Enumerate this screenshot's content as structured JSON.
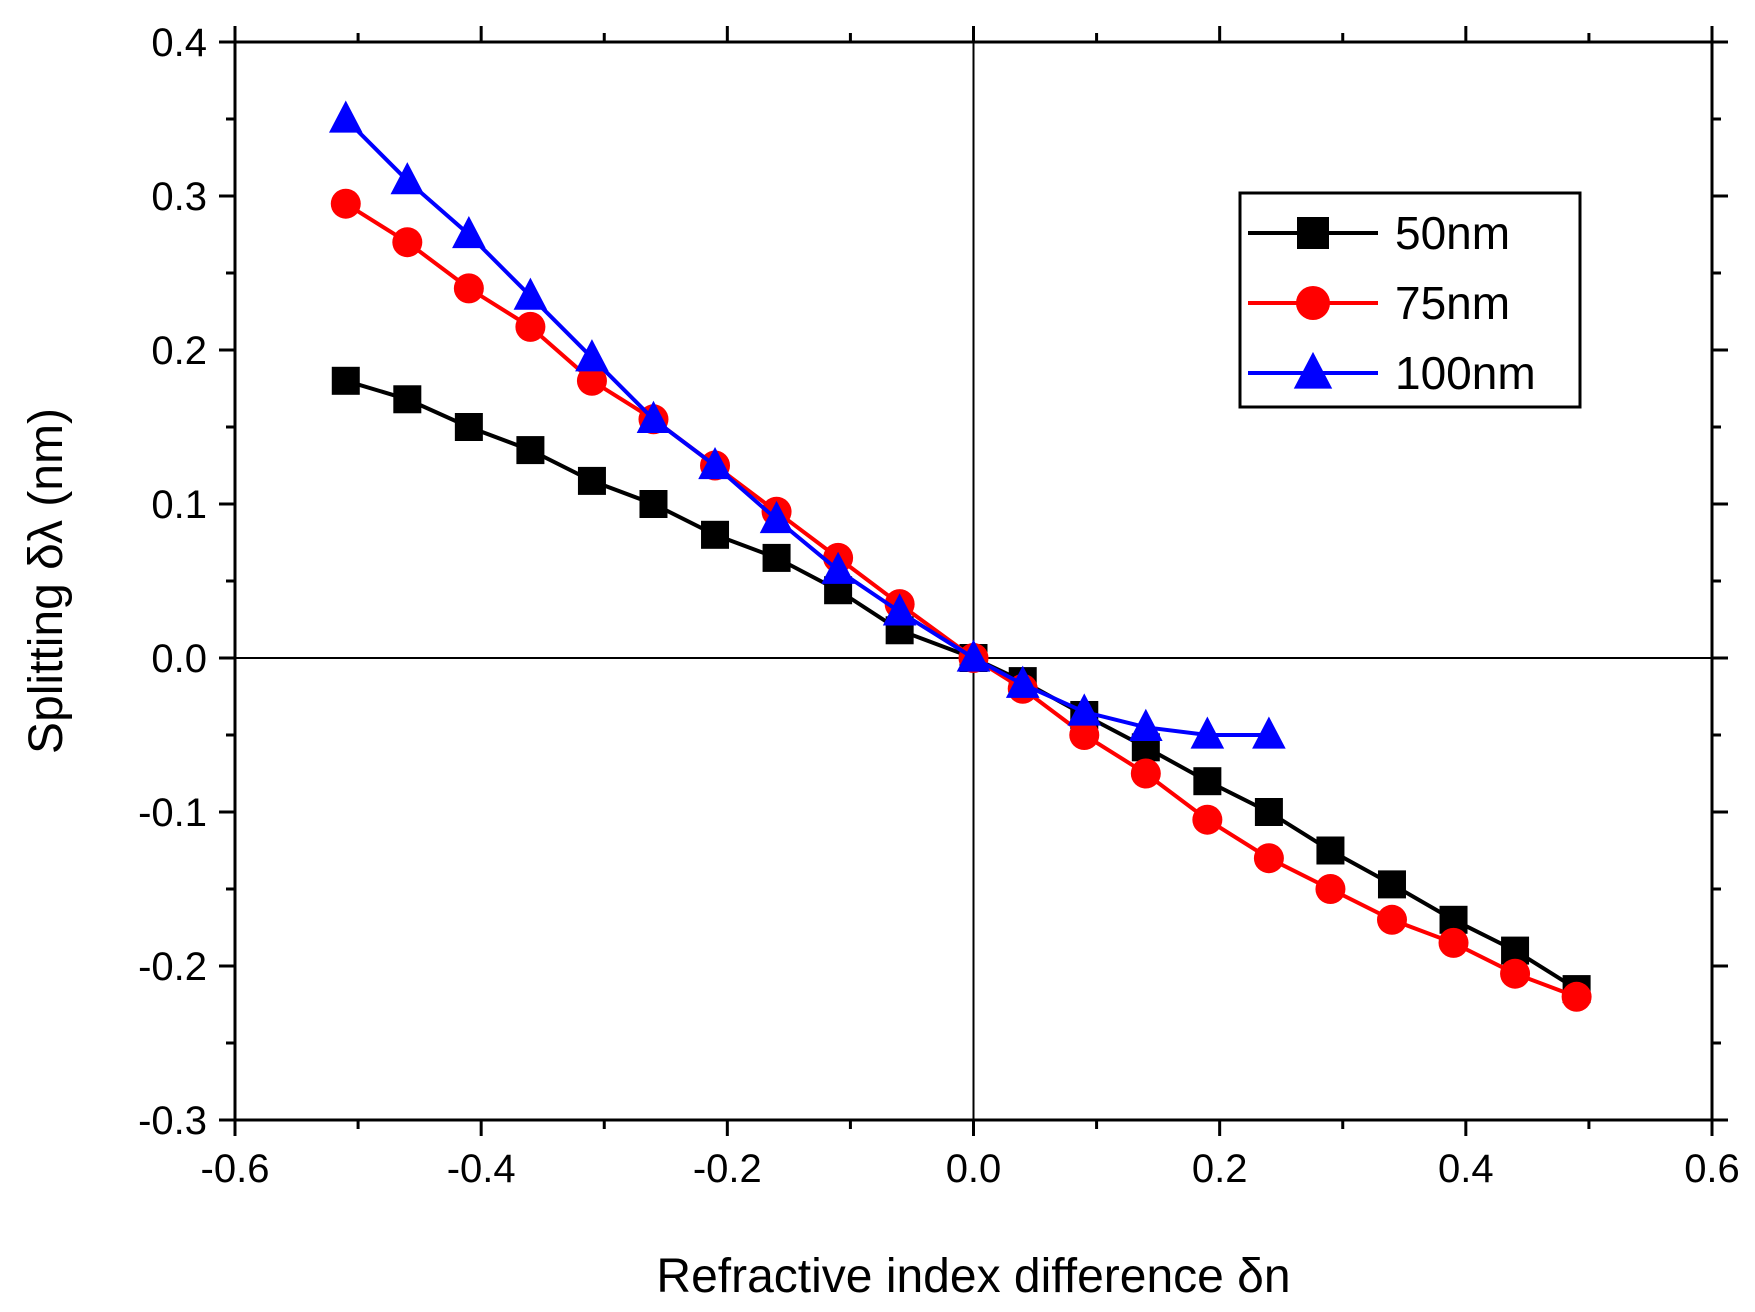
{
  "chart_data": {
    "type": "line",
    "title": "",
    "xlabel": "Refractive index difference δn",
    "ylabel": "Splitting δλ (nm)",
    "xlim": [
      -0.6,
      0.6
    ],
    "ylim": [
      -0.3,
      0.4
    ],
    "x_ticks": [
      "-0.6",
      "-0.4",
      "-0.2",
      "0.0",
      "0.2",
      "0.4",
      "0.6"
    ],
    "y_ticks": [
      "-0.3",
      "-0.2",
      "-0.1",
      "0.0",
      "0.1",
      "0.2",
      "0.3",
      "0.4"
    ],
    "grid": false,
    "reference_lines": {
      "x": 0,
      "y": 0
    },
    "legend_position": "top-right",
    "series": [
      {
        "name": "50nm",
        "color": "#000000",
        "marker": "square",
        "x": [
          -0.51,
          -0.46,
          -0.41,
          -0.36,
          -0.31,
          -0.26,
          -0.21,
          -0.16,
          -0.11,
          -0.06,
          0.0,
          0.04,
          0.09,
          0.14,
          0.19,
          0.24,
          0.29,
          0.34,
          0.39,
          0.44,
          0.49
        ],
        "y": [
          0.18,
          0.168,
          0.15,
          0.135,
          0.115,
          0.1,
          0.08,
          0.065,
          0.044,
          0.018,
          0.0,
          -0.015,
          -0.037,
          -0.058,
          -0.08,
          -0.1,
          -0.125,
          -0.147,
          -0.17,
          -0.19,
          -0.215
        ]
      },
      {
        "name": "75nm",
        "color": "#ff0000",
        "marker": "circle",
        "x": [
          -0.51,
          -0.46,
          -0.41,
          -0.36,
          -0.31,
          -0.26,
          -0.21,
          -0.16,
          -0.11,
          -0.06,
          0.0,
          0.04,
          0.09,
          0.14,
          0.19,
          0.24,
          0.29,
          0.34,
          0.39,
          0.44,
          0.49
        ],
        "y": [
          0.295,
          0.27,
          0.24,
          0.215,
          0.18,
          0.155,
          0.125,
          0.095,
          0.065,
          0.035,
          0.0,
          -0.02,
          -0.05,
          -0.075,
          -0.105,
          -0.13,
          -0.15,
          -0.17,
          -0.185,
          -0.205,
          -0.22
        ]
      },
      {
        "name": "100nm",
        "color": "#0000ff",
        "marker": "triangle",
        "x": [
          -0.51,
          -0.46,
          -0.41,
          -0.36,
          -0.31,
          -0.26,
          -0.21,
          -0.16,
          -0.11,
          -0.06,
          0.0,
          0.04,
          0.09,
          0.14,
          0.19,
          0.24
        ],
        "y": [
          0.35,
          0.31,
          0.275,
          0.235,
          0.195,
          0.155,
          0.125,
          0.09,
          0.057,
          0.03,
          0.0,
          -0.017,
          -0.035,
          -0.045,
          -0.05,
          -0.05
        ]
      }
    ]
  }
}
